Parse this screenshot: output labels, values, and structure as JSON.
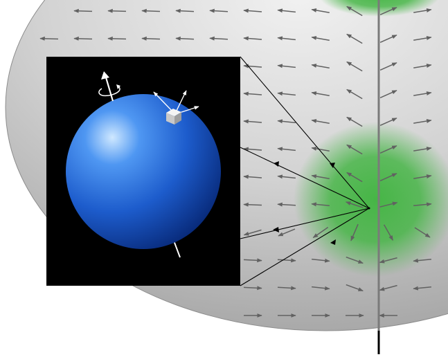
{
  "diagram": {
    "colors": {
      "background": "#ffffff",
      "sphere_light": "#f1f1f1",
      "sphere_mid": "#cfcfcf",
      "sphere_dark": "#a9a9a9",
      "sphere_outline": "#8c8c8c",
      "flow_arrow": "#616161",
      "green_region": "#3fb43f",
      "axis_line": "#7a7a7a",
      "axis_line_dark": "#000000",
      "inset_background": "#000000",
      "ball_highlight": "#bfe0ff",
      "ball_mid": "#2e7fe8",
      "ball_dark": "#0a2f85",
      "inset_arrows": "#ffffff",
      "connector_lines": "#000000"
    },
    "elements": {
      "large_sphere": "large-gray-sphere",
      "flow_field": "tangent-vector-field-arrows",
      "green_regions": "green-glow-regions",
      "rotation_axis": "vertical-axis-line",
      "focal_point": "convergence-point",
      "inset": "inset-black-panel",
      "small_sphere": "blue-sphere",
      "spin_axis": "spin-axis-arrow",
      "cube": "small-cube",
      "cube_axes": "cube-coordinate-arrows"
    }
  }
}
